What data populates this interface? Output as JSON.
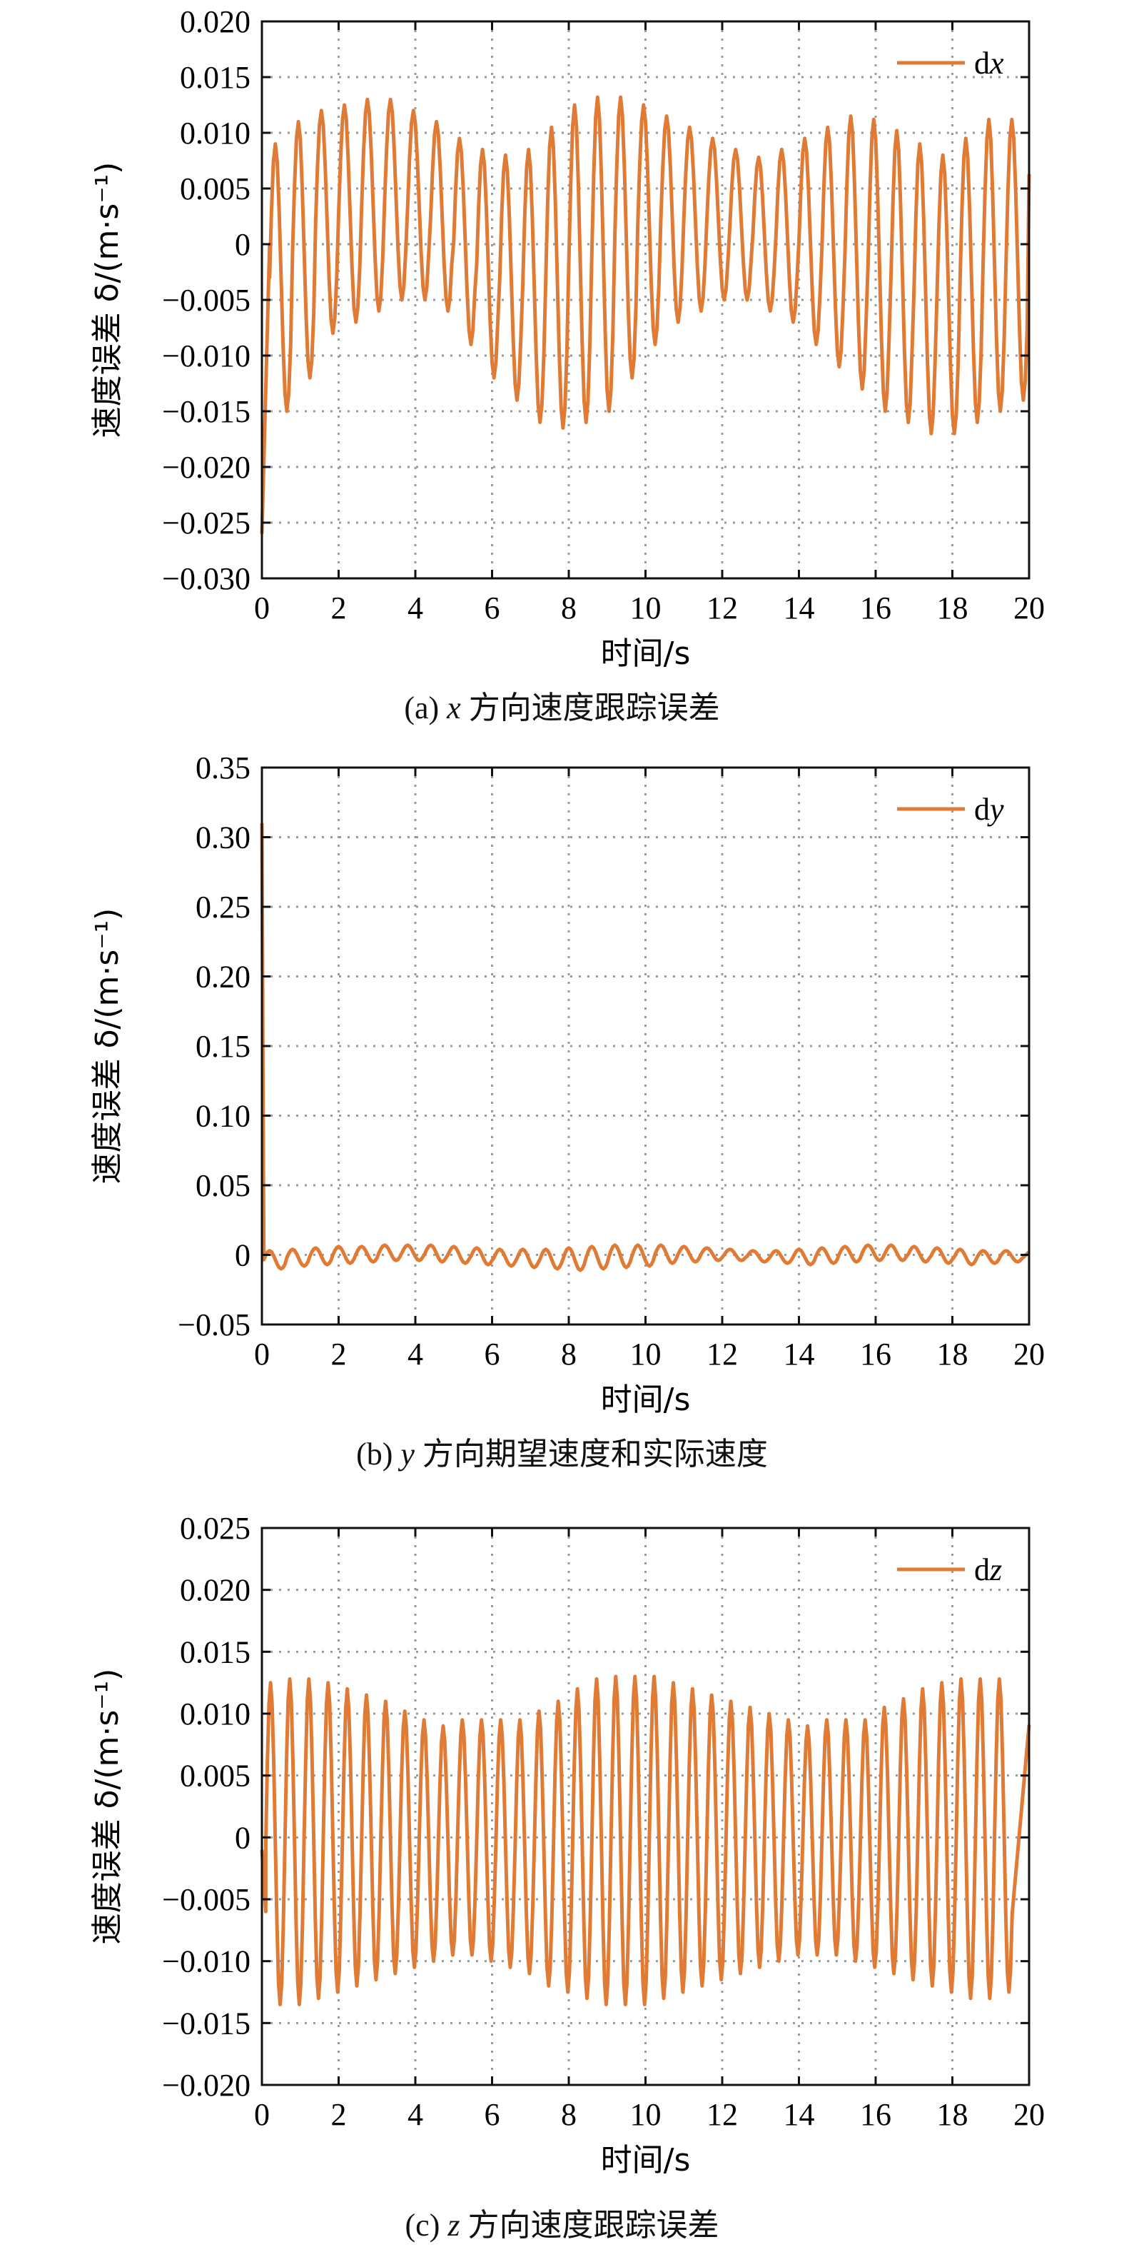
{
  "chart_data": [
    {
      "type": "line",
      "caption_prefix": "(a)",
      "caption_var": "x",
      "caption_text": "方向速度跟踪误差",
      "xlabel": "时间/s",
      "ylabel": "速度误差 δ/(m·s⁻¹)",
      "xlim": [
        0,
        20
      ],
      "ylim": [
        -0.03,
        0.02
      ],
      "xticks": [
        "0",
        "2",
        "4",
        "6",
        "8",
        "10",
        "12",
        "14",
        "16",
        "18",
        "20"
      ],
      "yticks": [
        "0.020",
        "0.015",
        "0.010",
        "0.005",
        "0",
        "−0.005",
        "−0.010",
        "−0.015",
        "−0.020",
        "−0.025",
        "−0.030"
      ],
      "grid": true,
      "legend": "top-right",
      "series": [
        {
          "name_prefix": "d",
          "name_var": "x",
          "color": "#e07b35",
          "segments": [
            {
              "t0": 0.0,
              "t1": 0.2,
              "trend": "initial transient",
              "from": -0.026,
              "to": 0.0
            },
            {
              "t0": 0.2,
              "t1": 20.0,
              "period": 0.6,
              "peaks": [
                0.009,
                0.011,
                0.012,
                0.0125,
                0.013,
                0.013,
                0.012,
                0.011,
                0.0095,
                0.0085,
                0.008,
                0.0085,
                0.0105,
                0.0125,
                0.0132,
                0.0132,
                0.0125,
                0.0115,
                0.0105,
                0.0095,
                0.0085,
                0.0078,
                0.0085,
                0.0095,
                0.0105,
                0.0115,
                0.0112,
                0.0102,
                0.009,
                0.008,
                0.0095,
                0.0112,
                0.0112
              ],
              "troughs": [
                -0.015,
                -0.012,
                -0.008,
                -0.007,
                -0.006,
                -0.005,
                -0.005,
                -0.006,
                -0.009,
                -0.012,
                -0.014,
                -0.016,
                -0.0165,
                -0.016,
                -0.015,
                -0.012,
                -0.009,
                -0.007,
                -0.006,
                -0.005,
                -0.005,
                -0.006,
                -0.007,
                -0.009,
                -0.011,
                -0.013,
                -0.015,
                -0.016,
                -0.017,
                -0.017,
                -0.016,
                -0.015,
                -0.014
              ]
            }
          ]
        }
      ]
    },
    {
      "type": "line",
      "caption_prefix": "(b)",
      "caption_var": "y",
      "caption_text": "方向期望速度和实际速度",
      "xlabel": "时间/s",
      "ylabel": "速度误差 δ/(m·s⁻¹)",
      "xlim": [
        0,
        20
      ],
      "ylim": [
        -0.05,
        0.35
      ],
      "xticks": [
        "0",
        "2",
        "4",
        "6",
        "8",
        "10",
        "12",
        "14",
        "16",
        "18",
        "20"
      ],
      "yticks": [
        "0.35",
        "0.30",
        "0.25",
        "0.20",
        "0.15",
        "0.10",
        "0.05",
        "0",
        "−0.05"
      ],
      "grid": true,
      "legend": "top-right",
      "series": [
        {
          "name_prefix": "d",
          "name_var": "y",
          "color": "#e07b35",
          "segments": [
            {
              "t0": 0.0,
              "t1": 0.05,
              "trend": "initial spike",
              "from": 0.31,
              "to": 0.0
            },
            {
              "t0": 0.05,
              "t1": 20.0,
              "period": 0.6,
              "peaks": [
                0.003,
                0.004,
                0.005,
                0.006,
                0.006,
                0.007,
                0.007,
                0.007,
                0.006,
                0.005,
                0.004,
                0.004,
                0.004,
                0.005,
                0.006,
                0.007,
                0.007,
                0.007,
                0.006,
                0.005,
                0.004,
                0.003,
                0.003,
                0.004,
                0.005,
                0.006,
                0.007,
                0.007,
                0.006,
                0.005,
                0.004,
                0.003,
                0.003
              ],
              "troughs": [
                -0.01,
                -0.008,
                -0.007,
                -0.006,
                -0.005,
                -0.004,
                -0.004,
                -0.005,
                -0.006,
                -0.007,
                -0.008,
                -0.009,
                -0.01,
                -0.011,
                -0.01,
                -0.009,
                -0.008,
                -0.006,
                -0.005,
                -0.004,
                -0.004,
                -0.005,
                -0.006,
                -0.007,
                -0.006,
                -0.005,
                -0.004,
                -0.004,
                -0.005,
                -0.006,
                -0.007,
                -0.006,
                -0.005
              ]
            }
          ]
        }
      ]
    },
    {
      "type": "line",
      "caption_prefix": "(c)",
      "caption_var": "z",
      "caption_text": "方向速度跟踪误差",
      "xlabel": "时间/s",
      "ylabel": "速度误差 δ/(m·s⁻¹)",
      "xlim": [
        0,
        20
      ],
      "ylim": [
        -0.02,
        0.025
      ],
      "xticks": [
        "0",
        "2",
        "4",
        "6",
        "8",
        "10",
        "12",
        "14",
        "16",
        "18",
        "20"
      ],
      "yticks": [
        "0.025",
        "0.020",
        "0.015",
        "0.010",
        "0.005",
        "0",
        "−0.005",
        "−0.010",
        "−0.015",
        "−0.020"
      ],
      "grid": true,
      "legend": "top-right",
      "series": [
        {
          "name_prefix": "d",
          "name_var": "z",
          "color": "#e07b35",
          "segments": [
            {
              "t0": 0.0,
              "t1": 0.1,
              "trend": "initial",
              "from": -0.001,
              "to": -0.006
            },
            {
              "t0": 0.1,
              "t1": 20.0,
              "period": 0.5,
              "peaks": [
                0.0125,
                0.0128,
                0.0128,
                0.0125,
                0.012,
                0.0115,
                0.011,
                0.0102,
                0.0095,
                0.009,
                0.0095,
                0.0095,
                0.0095,
                0.0095,
                0.0102,
                0.011,
                0.012,
                0.0128,
                0.013,
                0.013,
                0.013,
                0.0125,
                0.012,
                0.0115,
                0.011,
                0.0105,
                0.01,
                0.0095,
                0.009,
                0.0095,
                0.0095,
                0.0095,
                0.0105,
                0.0112,
                0.012,
                0.0125,
                0.0128,
                0.0128,
                0.0128,
                0.013
              ],
              "troughs": [
                -0.0135,
                -0.0135,
                -0.013,
                -0.0125,
                -0.012,
                -0.0115,
                -0.011,
                -0.0105,
                -0.01,
                -0.0095,
                -0.0095,
                -0.01,
                -0.0105,
                -0.011,
                -0.012,
                -0.0125,
                -0.013,
                -0.0135,
                -0.0135,
                -0.0135,
                -0.013,
                -0.0125,
                -0.012,
                -0.0115,
                -0.011,
                -0.0105,
                -0.01,
                -0.0095,
                -0.0095,
                -0.0095,
                -0.01,
                -0.0105,
                -0.011,
                -0.0115,
                -0.012,
                -0.0125,
                -0.013,
                -0.013,
                -0.0125,
                -0.012
              ]
            }
          ]
        }
      ]
    }
  ]
}
